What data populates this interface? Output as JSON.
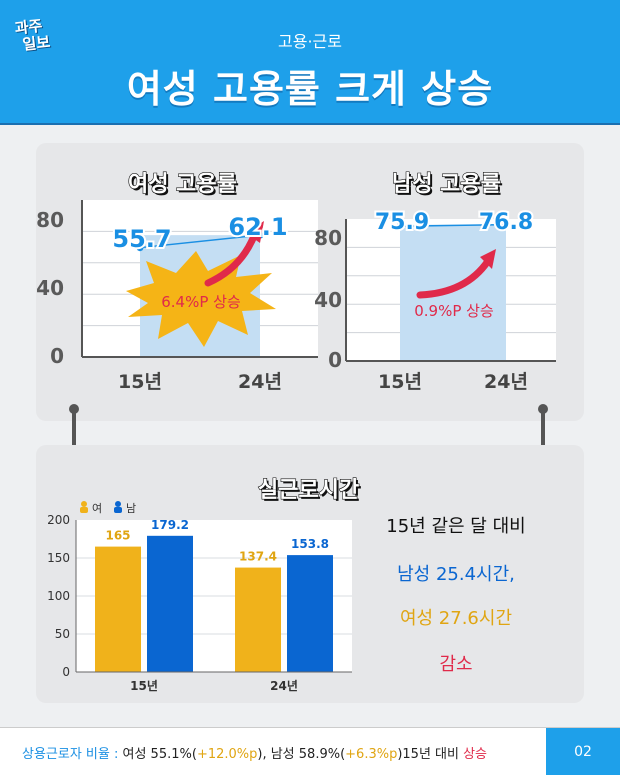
{
  "header": {
    "logo_line1": "과주",
    "logo_line2": "일보",
    "category": "고용·근로",
    "title": "여성 고용률 크게 상승"
  },
  "colors": {
    "header_blue": "#1ea0ea",
    "female": "#f0b21b",
    "male": "#0a66d1",
    "accent_red": "#e02a4a",
    "value_blue": "#1a8fe3"
  },
  "chart_data": [
    {
      "type": "area",
      "title": "여성 고용률",
      "categories": [
        "15년",
        "24년"
      ],
      "values": [
        55.7,
        62.1
      ],
      "value_labels": [
        "55.7",
        "62.1"
      ],
      "yticks": [
        "80",
        "40",
        "0"
      ],
      "ylim": [
        0,
        80
      ],
      "annotation": "6.4%P 상승"
    },
    {
      "type": "area",
      "title": "남성 고용률",
      "categories": [
        "15년",
        "24년"
      ],
      "values": [
        75.9,
        76.8
      ],
      "value_labels": [
        "75.9",
        "76.8"
      ],
      "yticks": [
        "80",
        "40",
        "0"
      ],
      "ylim": [
        0,
        80
      ],
      "annotation": "0.9%P 상승"
    },
    {
      "type": "bar",
      "title": "실근로시간",
      "categories": [
        "15년",
        "24년"
      ],
      "series": [
        {
          "name": "여",
          "values": [
            165,
            137.4
          ],
          "labels": [
            "165",
            "137.4"
          ]
        },
        {
          "name": "남",
          "values": [
            179.2,
            153.8
          ],
          "labels": [
            "179.2",
            "153.8"
          ]
        }
      ],
      "yticks": [
        "200",
        "150",
        "100",
        "50",
        "0"
      ],
      "ylim": [
        0,
        200
      ],
      "grid": true,
      "legend": "top-left"
    }
  ],
  "hours_note": {
    "line1": "15년 같은 달 대비",
    "line2": "남성 25.4시간,",
    "line3": "여성 27.6시간",
    "line4": "감소"
  },
  "footer": {
    "label": "상용근로자 비율 :",
    "female": " 여성 55.1%(",
    "female_change": "+12.0%p",
    "male": "), 남성 58.9%(",
    "male_change": "+6.3%p",
    "rest": ")15년 대비 ",
    "rise": "상승",
    "page": "02"
  }
}
